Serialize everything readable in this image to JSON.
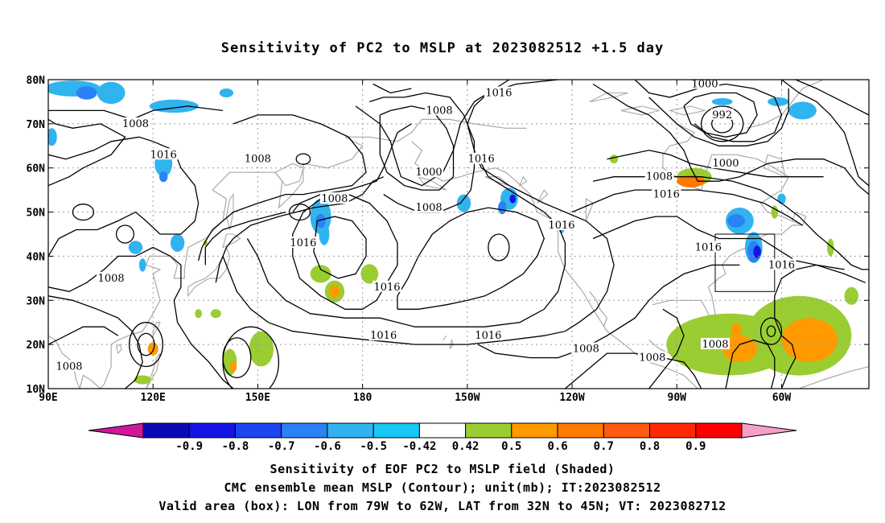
{
  "title": "Sensitivity of PC2 to MSLP at 2023082512 +1.5 day",
  "axes": {
    "lat_labels": [
      "80N",
      "70N",
      "60N",
      "50N",
      "40N",
      "30N",
      "20N",
      "10N"
    ],
    "lon_labels": [
      "90E",
      "120E",
      "150E",
      "180",
      "150W",
      "120W",
      "90W",
      "60W"
    ],
    "lon_range_deg_east": [
      90,
      325
    ],
    "lat_range": [
      10,
      80
    ]
  },
  "colorbar": {
    "labels": [
      "-0.9",
      "-0.8",
      "-0.7",
      "-0.6",
      "-0.5",
      "-0.42",
      "0.42",
      "0.5",
      "0.6",
      "0.7",
      "0.8",
      "0.9"
    ],
    "colors": [
      "#d0169a",
      "#0a0ab4",
      "#1414e6",
      "#1e46f0",
      "#2a82f5",
      "#30b4f0",
      "#18c8f5",
      "#ffffff",
      "#9acd32",
      "#ff9a00",
      "#ff7a00",
      "#ff5a14",
      "#ff2a00",
      "#ff0000",
      "#f5a0c8"
    ]
  },
  "contour_labels": [
    {
      "text": "1008",
      "lon": 115,
      "lat": 70
    },
    {
      "text": "1016",
      "lon": 123,
      "lat": 63
    },
    {
      "text": "1008",
      "lon": 150,
      "lat": 62
    },
    {
      "text": "1008",
      "lon": 172,
      "lat": 53
    },
    {
      "text": "1016",
      "lon": 163,
      "lat": 43
    },
    {
      "text": "1008",
      "lon": 108,
      "lat": 35
    },
    {
      "text": "1008",
      "lon": 96,
      "lat": 15
    },
    {
      "text": "1016",
      "lon": 187,
      "lat": 33
    },
    {
      "text": "1016",
      "lon": 186,
      "lat": 22
    },
    {
      "text": "1008",
      "lon": 202,
      "lat": 73
    },
    {
      "text": "1016",
      "lon": 219,
      "lat": 77
    },
    {
      "text": "1000",
      "lon": 199,
      "lat": 59
    },
    {
      "text": "1016",
      "lon": 214,
      "lat": 62
    },
    {
      "text": "1008",
      "lon": 199,
      "lat": 51
    },
    {
      "text": "1016",
      "lon": 237,
      "lat": 47
    },
    {
      "text": "1016",
      "lon": 216,
      "lat": 22
    },
    {
      "text": "1008",
      "lon": 244,
      "lat": 19
    },
    {
      "text": "1008",
      "lon": 263,
      "lat": 17
    },
    {
      "text": "1000",
      "lon": 278,
      "lat": 79
    },
    {
      "text": "992",
      "lon": 283,
      "lat": 72
    },
    {
      "text": "1000",
      "lon": 284,
      "lat": 61
    },
    {
      "text": "1008",
      "lon": 265,
      "lat": 58
    },
    {
      "text": "1016",
      "lon": 267,
      "lat": 54
    },
    {
      "text": "1016",
      "lon": 279,
      "lat": 42
    },
    {
      "text": "1016",
      "lon": 300,
      "lat": 38
    },
    {
      "text": "1008",
      "lon": 281,
      "lat": 20
    }
  ],
  "low_centers": [
    {
      "lon": 283,
      "lat": 70
    },
    {
      "lon": 193,
      "lat": 62
    }
  ],
  "high_centers": [
    {
      "lon": 219,
      "lat": 42
    },
    {
      "lon": 175,
      "lat": 42
    },
    {
      "lon": 118,
      "lat": 20
    }
  ],
  "positive_patches": [
    {
      "lon": 285,
      "lat": 20,
      "rx": 18,
      "ry": 7,
      "level": "0.5"
    },
    {
      "lon": 305,
      "lat": 22,
      "rx": 15,
      "ry": 9,
      "level": "0.5"
    },
    {
      "lon": 308,
      "lat": 21,
      "rx": 8,
      "ry": 5,
      "level": "0.6"
    },
    {
      "lon": 288,
      "lat": 19,
      "rx": 5,
      "ry": 3,
      "level": "0.6"
    },
    {
      "lon": 287,
      "lat": 23,
      "rx": 1.5,
      "ry": 2,
      "level": "0.6"
    },
    {
      "lon": 275,
      "lat": 58,
      "rx": 5,
      "ry": 2,
      "level": "0.5"
    },
    {
      "lon": 274,
      "lat": 57,
      "rx": 4,
      "ry": 1.4,
      "level": "0.7"
    },
    {
      "lon": 168,
      "lat": 36,
      "rx": 3,
      "ry": 2,
      "level": "0.5"
    },
    {
      "lon": 172,
      "lat": 32,
      "rx": 2.8,
      "ry": 2.5,
      "level": "0.5"
    },
    {
      "lon": 172,
      "lat": 32,
      "rx": 1.5,
      "ry": 1.5,
      "level": "0.6"
    },
    {
      "lon": 182,
      "lat": 36,
      "rx": 2.5,
      "ry": 2.2,
      "level": "0.5"
    },
    {
      "lon": 151,
      "lat": 19,
      "rx": 3.5,
      "ry": 4,
      "level": "0.5"
    },
    {
      "lon": 142,
      "lat": 16,
      "rx": 2,
      "ry": 3,
      "level": "0.5"
    },
    {
      "lon": 143,
      "lat": 15,
      "rx": 1,
      "ry": 1.2,
      "level": "0.6"
    },
    {
      "lon": 120,
      "lat": 19,
      "rx": 1.5,
      "ry": 1.5,
      "level": "0.6"
    },
    {
      "lon": 117,
      "lat": 12,
      "rx": 2.5,
      "ry": 1,
      "level": "0.5"
    },
    {
      "lon": 138,
      "lat": 27,
      "rx": 1.5,
      "ry": 1,
      "level": "0.5"
    },
    {
      "lon": 135,
      "lat": 43,
      "rx": 0.6,
      "ry": 0.6,
      "level": "0.5"
    },
    {
      "lon": 133,
      "lat": 27,
      "rx": 1,
      "ry": 1,
      "level": "0.5"
    },
    {
      "lon": 320,
      "lat": 31,
      "rx": 2,
      "ry": 2,
      "level": "0.5"
    },
    {
      "lon": 314,
      "lat": 42,
      "rx": 1,
      "ry": 2,
      "level": "0.5"
    },
    {
      "lon": 252,
      "lat": 62,
      "rx": 1.2,
      "ry": 1,
      "level": "0.5"
    },
    {
      "lon": 298,
      "lat": 50,
      "rx": 1,
      "ry": 1.5,
      "level": "0.5"
    }
  ],
  "negative_patches": [
    {
      "lon": 97,
      "lat": 78,
      "rx": 8,
      "ry": 1.8,
      "level": "-0.5"
    },
    {
      "lon": 108,
      "lat": 77,
      "rx": 4,
      "ry": 2.5,
      "level": "-0.5"
    },
    {
      "lon": 101,
      "lat": 77,
      "rx": 3,
      "ry": 1.5,
      "level": "-0.6"
    },
    {
      "lon": 126,
      "lat": 74,
      "rx": 7,
      "ry": 1.5,
      "level": "-0.5"
    },
    {
      "lon": 141,
      "lat": 77,
      "rx": 2,
      "ry": 1,
      "level": "-0.5"
    },
    {
      "lon": 91,
      "lat": 67,
      "rx": 1.5,
      "ry": 2,
      "level": "-0.5"
    },
    {
      "lon": 123,
      "lat": 61,
      "rx": 2.5,
      "ry": 3,
      "level": "-0.5"
    },
    {
      "lon": 123,
      "lat": 58,
      "rx": 1.2,
      "ry": 1.2,
      "level": "-0.6"
    },
    {
      "lon": 115,
      "lat": 42,
      "rx": 2,
      "ry": 1.5,
      "level": "-0.5"
    },
    {
      "lon": 127,
      "lat": 43,
      "rx": 2,
      "ry": 2,
      "level": "-0.5"
    },
    {
      "lon": 117,
      "lat": 38,
      "rx": 1,
      "ry": 1.5,
      "level": "-0.5"
    },
    {
      "lon": 168,
      "lat": 49,
      "rx": 3,
      "ry": 4,
      "level": "-0.5"
    },
    {
      "lon": 169,
      "lat": 45,
      "rx": 1.5,
      "ry": 2.5,
      "level": "-0.5"
    },
    {
      "lon": 168,
      "lat": 48,
      "rx": 1.4,
      "ry": 1.6,
      "level": "-0.6"
    },
    {
      "lon": 222,
      "lat": 53,
      "rx": 2.5,
      "ry": 2.5,
      "level": "-0.5"
    },
    {
      "lon": 220,
      "lat": 51,
      "rx": 1.2,
      "ry": 1.5,
      "level": "-0.6"
    },
    {
      "lon": 223,
      "lat": 53,
      "rx": 0.9,
      "ry": 1,
      "level": "-0.8"
    },
    {
      "lon": 209,
      "lat": 52,
      "rx": 2,
      "ry": 2,
      "level": "-0.5"
    },
    {
      "lon": 306,
      "lat": 73,
      "rx": 4,
      "ry": 2,
      "level": "-0.5"
    },
    {
      "lon": 299,
      "lat": 75,
      "rx": 3,
      "ry": 1,
      "level": "-0.5"
    },
    {
      "lon": 283,
      "lat": 75,
      "rx": 3,
      "ry": 0.8,
      "level": "-0.5"
    },
    {
      "lon": 288,
      "lat": 48,
      "rx": 4,
      "ry": 3,
      "level": "-0.5"
    },
    {
      "lon": 287,
      "lat": 48,
      "rx": 2.5,
      "ry": 1.5,
      "level": "-0.6"
    },
    {
      "lon": 292,
      "lat": 42,
      "rx": 2.5,
      "ry": 3.5,
      "level": "-0.5"
    },
    {
      "lon": 292,
      "lat": 41,
      "rx": 1.8,
      "ry": 2.5,
      "level": "-0.6"
    },
    {
      "lon": 293,
      "lat": 41,
      "rx": 1.1,
      "ry": 1.4,
      "level": "-0.8"
    },
    {
      "lon": 300,
      "lat": 53,
      "rx": 1.2,
      "ry": 1.2,
      "level": "-0.5"
    },
    {
      "lon": 237,
      "lat": 46,
      "rx": 0.8,
      "ry": 0.8,
      "level": "-0.5"
    }
  ],
  "valid_area": {
    "lon1": -79,
    "lon2": -62,
    "lat1": 32,
    "lat2": 45
  },
  "caption_lines": [
    "Sensitivity of EOF PC2 to MSLP field (Shaded)",
    "CMC ensemble mean MSLP (Contour); unit(mb); IT:2023082512",
    "Valid area (box): LON from 79W to 62W, LAT from 32N to 45N; VT: 2023082712"
  ]
}
